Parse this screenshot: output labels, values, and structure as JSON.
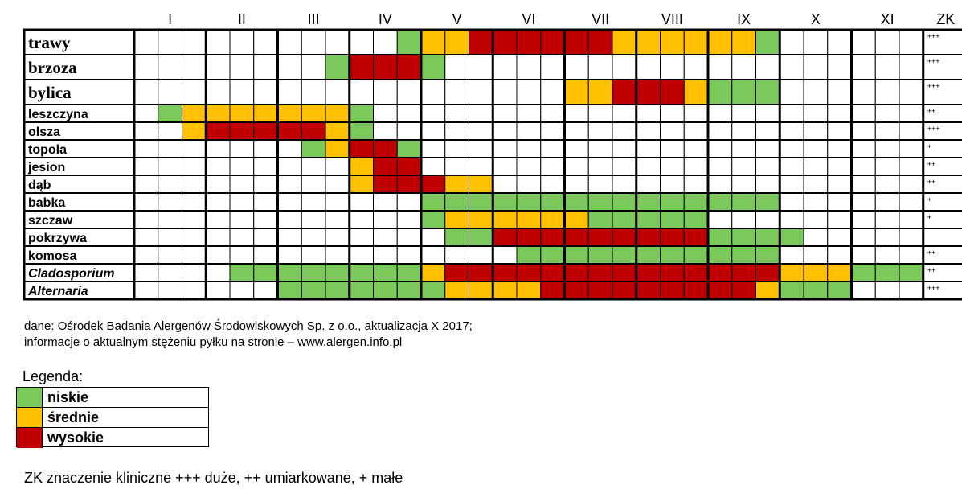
{
  "chart_data": {
    "type": "heatmap",
    "title": "",
    "months": [
      "I",
      "II",
      "III",
      "IV",
      "V",
      "VI",
      "VII",
      "VIII",
      "IX",
      "X",
      "XI"
    ],
    "zk_header": "ZK",
    "cells_per_month": 3,
    "level_codes": {
      "0": "none",
      "1": "niskie",
      "2": "średnie",
      "3": "wysokie"
    },
    "rows": [
      {
        "name": "trawy",
        "zk": "+++",
        "values": [
          0,
          0,
          0,
          0,
          0,
          0,
          0,
          0,
          0,
          0,
          0,
          1,
          2,
          2,
          3,
          3,
          3,
          3,
          3,
          3,
          2,
          2,
          2,
          2,
          2,
          2,
          1,
          0,
          0,
          0,
          0,
          0,
          0
        ]
      },
      {
        "name": "brzoza",
        "zk": "+++",
        "values": [
          0,
          0,
          0,
          0,
          0,
          0,
          0,
          0,
          1,
          3,
          3,
          3,
          1,
          0,
          0,
          0,
          0,
          0,
          0,
          0,
          0,
          0,
          0,
          0,
          0,
          0,
          0,
          0,
          0,
          0,
          0,
          0,
          0
        ]
      },
      {
        "name": "bylica",
        "zk": "+++",
        "values": [
          0,
          0,
          0,
          0,
          0,
          0,
          0,
          0,
          0,
          0,
          0,
          0,
          0,
          0,
          0,
          0,
          0,
          0,
          2,
          2,
          3,
          3,
          3,
          2,
          1,
          1,
          1,
          0,
          0,
          0,
          0,
          0,
          0
        ]
      },
      {
        "name": "leszczyna",
        "zk": "++",
        "values": [
          0,
          1,
          2,
          2,
          2,
          2,
          2,
          2,
          2,
          1,
          0,
          0,
          0,
          0,
          0,
          0,
          0,
          0,
          0,
          0,
          0,
          0,
          0,
          0,
          0,
          0,
          0,
          0,
          0,
          0,
          0,
          0,
          0
        ]
      },
      {
        "name": "olsza",
        "zk": "+++",
        "values": [
          0,
          0,
          2,
          3,
          3,
          3,
          3,
          3,
          2,
          1,
          0,
          0,
          0,
          0,
          0,
          0,
          0,
          0,
          0,
          0,
          0,
          0,
          0,
          0,
          0,
          0,
          0,
          0,
          0,
          0,
          0,
          0,
          0
        ]
      },
      {
        "name": "topola",
        "zk": "+",
        "values": [
          0,
          0,
          0,
          0,
          0,
          0,
          0,
          1,
          2,
          3,
          3,
          1,
          0,
          0,
          0,
          0,
          0,
          0,
          0,
          0,
          0,
          0,
          0,
          0,
          0,
          0,
          0,
          0,
          0,
          0,
          0,
          0,
          0
        ]
      },
      {
        "name": "jesion",
        "zk": "++",
        "values": [
          0,
          0,
          0,
          0,
          0,
          0,
          0,
          0,
          0,
          2,
          3,
          3,
          0,
          0,
          0,
          0,
          0,
          0,
          0,
          0,
          0,
          0,
          0,
          0,
          0,
          0,
          0,
          0,
          0,
          0,
          0,
          0,
          0
        ]
      },
      {
        "name": "dąb",
        "zk": "++",
        "values": [
          0,
          0,
          0,
          0,
          0,
          0,
          0,
          0,
          0,
          2,
          3,
          3,
          3,
          2,
          2,
          0,
          0,
          0,
          0,
          0,
          0,
          0,
          0,
          0,
          0,
          0,
          0,
          0,
          0,
          0,
          0,
          0,
          0
        ]
      },
      {
        "name": "babka",
        "zk": "+",
        "values": [
          0,
          0,
          0,
          0,
          0,
          0,
          0,
          0,
          0,
          0,
          0,
          0,
          1,
          1,
          1,
          1,
          1,
          1,
          1,
          1,
          1,
          1,
          1,
          1,
          1,
          1,
          1,
          0,
          0,
          0,
          0,
          0,
          0
        ]
      },
      {
        "name": "szczaw",
        "zk": "+",
        "values": [
          0,
          0,
          0,
          0,
          0,
          0,
          0,
          0,
          0,
          0,
          0,
          0,
          1,
          2,
          2,
          2,
          2,
          2,
          2,
          1,
          1,
          1,
          1,
          1,
          0,
          0,
          0,
          0,
          0,
          0,
          0,
          0,
          0
        ]
      },
      {
        "name": "pokrzywa",
        "zk": "",
        "values": [
          0,
          0,
          0,
          0,
          0,
          0,
          0,
          0,
          0,
          0,
          0,
          0,
          0,
          1,
          1,
          3,
          3,
          3,
          3,
          3,
          3,
          3,
          3,
          3,
          1,
          1,
          1,
          1,
          0,
          0,
          0,
          0,
          0
        ]
      },
      {
        "name": "komosa",
        "zk": "++",
        "values": [
          0,
          0,
          0,
          0,
          0,
          0,
          0,
          0,
          0,
          0,
          0,
          0,
          0,
          0,
          0,
          0,
          1,
          1,
          1,
          1,
          1,
          1,
          1,
          1,
          1,
          1,
          1,
          0,
          0,
          0,
          0,
          0,
          0
        ]
      },
      {
        "name": "Cladosporium",
        "zk": "++",
        "italic": true,
        "values": [
          0,
          0,
          0,
          0,
          1,
          1,
          1,
          1,
          1,
          1,
          1,
          1,
          2,
          3,
          3,
          3,
          3,
          3,
          3,
          3,
          3,
          3,
          3,
          3,
          3,
          3,
          3,
          2,
          2,
          2,
          1,
          1,
          1
        ]
      },
      {
        "name": "Alternaria",
        "zk": "+++",
        "italic": true,
        "values": [
          0,
          0,
          0,
          0,
          0,
          0,
          1,
          1,
          1,
          1,
          1,
          1,
          1,
          2,
          2,
          2,
          2,
          3,
          3,
          3,
          3,
          3,
          3,
          3,
          3,
          3,
          2,
          1,
          1,
          1,
          0,
          0,
          0
        ]
      }
    ],
    "colors": {
      "niskie": "#7bc95a",
      "średnie": "#ffc000",
      "wysokie": "#c00000",
      "none": "#ffffff"
    },
    "legend": {
      "title": "Legenda:",
      "items": [
        {
          "label": "niskie",
          "color": "#7bc95a"
        },
        {
          "label": "średnie",
          "color": "#ffc000"
        },
        {
          "label": "wysokie",
          "color": "#c00000"
        }
      ]
    }
  },
  "source": {
    "line1": "dane: Ośrodek Badania Alergenów Środowiskowych Sp. z o.o., aktualizacja X 2017;",
    "line2": "informacje o aktualnym stężeniu pyłku na stronie – www.alergen.info.pl"
  },
  "footnote": "ZK znaczenie kliniczne +++ duże, ++ umiarkowane, + małe"
}
